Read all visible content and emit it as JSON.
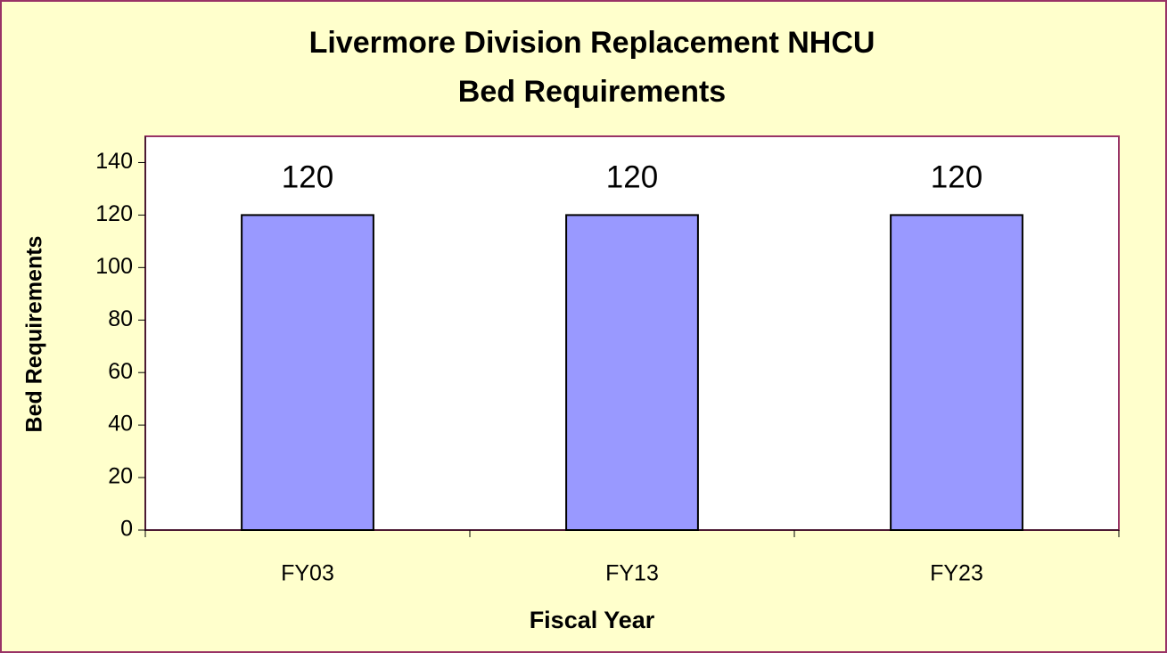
{
  "chart_data": {
    "type": "bar",
    "title": [
      "Livermore Division Replacement NHCU",
      "Bed Requirements"
    ],
    "x_label": "Fiscal Year",
    "y_label": "Bed Requirements",
    "categories": [
      "FY03",
      "FY13",
      "FY23"
    ],
    "values": [
      120,
      120,
      120
    ],
    "color": "#9999ff",
    "ylim": [
      0,
      150
    ],
    "yticks": [
      0,
      20,
      40,
      60,
      80,
      100,
      120,
      140
    ],
    "grid": false,
    "data_labels": true
  }
}
